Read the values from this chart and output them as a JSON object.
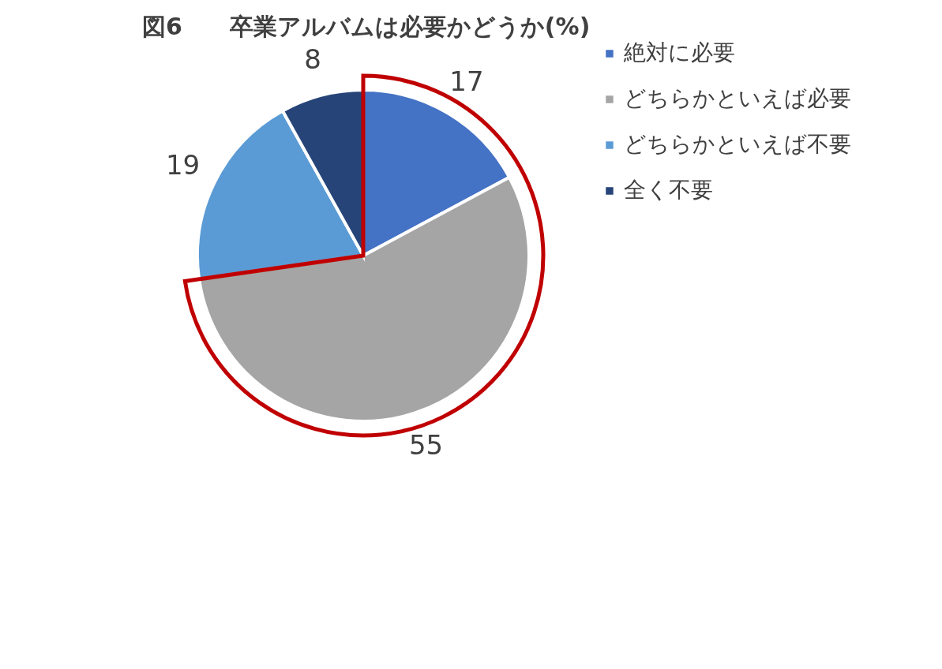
{
  "chart_data": {
    "type": "pie",
    "title": "図6　　卒業アルバムは必要かどうか(%)",
    "categories": [
      "絶対に必要",
      "どちらかといえば必要",
      "どちらかといえば不要",
      "全く不要"
    ],
    "values": [
      17,
      55,
      19,
      8
    ],
    "colors": [
      "#4472c4",
      "#a5a5a5",
      "#5b9bd5",
      "#264478"
    ],
    "data_labels": true,
    "legend": "right"
  }
}
